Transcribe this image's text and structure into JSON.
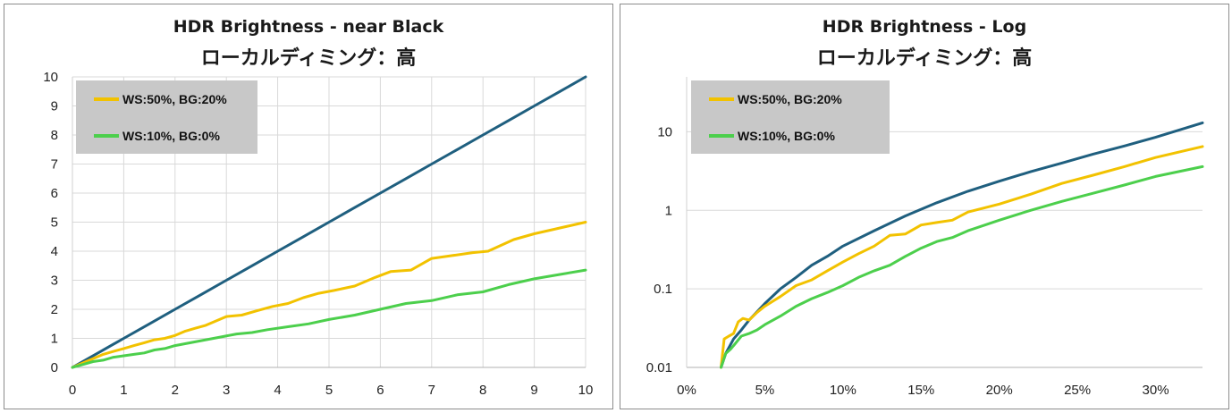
{
  "colors": {
    "reference": "#1f5f7f",
    "ws50": "#f2c200",
    "ws10": "#4ccf4c",
    "grid": "#d9d9d9",
    "legend_bg": "#c8c8c8"
  },
  "chart_data": [
    {
      "type": "line",
      "title": "HDR Brightness - near Black",
      "subtitle": "ローカルディミング：高",
      "xlim": [
        0,
        10
      ],
      "ylim": [
        0,
        10
      ],
      "x_ticks": [
        "0",
        "1",
        "2",
        "3",
        "4",
        "5",
        "6",
        "7",
        "8",
        "9",
        "10"
      ],
      "y_ticks": [
        "0",
        "1",
        "2",
        "3",
        "4",
        "5",
        "6",
        "7",
        "8",
        "9",
        "10"
      ],
      "grid": true,
      "legend_position": "top-left",
      "series": [
        {
          "color_key": "reference",
          "x": [
            0,
            0.5,
            1,
            1.5,
            2,
            2.5,
            3,
            3.5,
            4,
            4.5,
            5,
            5.5,
            6,
            6.5,
            7,
            7.5,
            8,
            8.5,
            9,
            9.5,
            10
          ],
          "y": [
            0,
            0.5,
            1,
            1.5,
            2,
            2.5,
            3,
            3.5,
            4,
            4.5,
            5,
            5.5,
            6,
            6.5,
            7,
            7.5,
            8,
            8.5,
            9,
            9.5,
            10
          ]
        },
        {
          "name": "WS:50%, BG:20%",
          "color_key": "ws50",
          "x": [
            0,
            0.2,
            0.4,
            0.6,
            0.8,
            1,
            1.2,
            1.4,
            1.6,
            1.8,
            2,
            2.2,
            2.4,
            2.6,
            2.8,
            3,
            3.3,
            3.6,
            3.9,
            4.2,
            4.5,
            4.8,
            5.1,
            5.5,
            5.9,
            6.2,
            6.6,
            7.0,
            7.4,
            7.8,
            8.1,
            8.6,
            9.0,
            9.5,
            10
          ],
          "y": [
            0,
            0.15,
            0.3,
            0.45,
            0.55,
            0.65,
            0.75,
            0.85,
            0.95,
            1.0,
            1.1,
            1.25,
            1.35,
            1.45,
            1.6,
            1.75,
            1.8,
            1.95,
            2.1,
            2.2,
            2.4,
            2.55,
            2.65,
            2.8,
            3.1,
            3.3,
            3.35,
            3.75,
            3.85,
            3.95,
            4.0,
            4.4,
            4.6,
            4.8,
            5.0
          ]
        },
        {
          "name": "WS:10%, BG:0%",
          "color_key": "ws10",
          "x": [
            0,
            0.2,
            0.4,
            0.6,
            0.8,
            1,
            1.2,
            1.4,
            1.6,
            1.8,
            2,
            2.3,
            2.6,
            2.9,
            3.2,
            3.5,
            3.8,
            4.2,
            4.6,
            5.0,
            5.5,
            6.0,
            6.5,
            7.0,
            7.5,
            8.0,
            8.5,
            9.0,
            9.5,
            10
          ],
          "y": [
            0,
            0.1,
            0.2,
            0.25,
            0.35,
            0.4,
            0.45,
            0.5,
            0.6,
            0.65,
            0.75,
            0.85,
            0.95,
            1.05,
            1.15,
            1.2,
            1.3,
            1.4,
            1.5,
            1.65,
            1.8,
            2.0,
            2.2,
            2.3,
            2.5,
            2.6,
            2.85,
            3.05,
            3.2,
            3.35
          ]
        }
      ]
    },
    {
      "type": "line",
      "title": "HDR Brightness - Log",
      "subtitle": "ローカルディミング：高",
      "xlim": [
        0,
        0.33
      ],
      "ylim": [
        0.01,
        50
      ],
      "y_scale": "log",
      "x_ticks": [
        "0%",
        "5%",
        "10%",
        "15%",
        "20%",
        "25%",
        "30%"
      ],
      "y_ticks": [
        "0.01",
        "0.1",
        "1",
        "10"
      ],
      "grid": true,
      "legend_position": "top-left",
      "series": [
        {
          "color_key": "reference",
          "x": [
            0.022,
            0.025,
            0.03,
            0.035,
            0.04,
            0.05,
            0.06,
            0.07,
            0.08,
            0.09,
            0.1,
            0.12,
            0.14,
            0.16,
            0.18,
            0.2,
            0.22,
            0.24,
            0.26,
            0.28,
            0.3,
            0.33
          ],
          "y": [
            0.01,
            0.015,
            0.023,
            0.03,
            0.04,
            0.065,
            0.1,
            0.14,
            0.2,
            0.26,
            0.35,
            0.55,
            0.85,
            1.25,
            1.75,
            2.35,
            3.1,
            4.0,
            5.2,
            6.6,
            8.5,
            13
          ]
        },
        {
          "name": "WS:50%, BG:20%",
          "color_key": "ws50",
          "x": [
            0.022,
            0.024,
            0.027,
            0.03,
            0.033,
            0.036,
            0.04,
            0.045,
            0.05,
            0.06,
            0.07,
            0.08,
            0.09,
            0.1,
            0.11,
            0.12,
            0.13,
            0.14,
            0.15,
            0.16,
            0.17,
            0.18,
            0.2,
            0.22,
            0.24,
            0.26,
            0.28,
            0.3,
            0.33
          ],
          "y": [
            0.01,
            0.023,
            0.025,
            0.027,
            0.038,
            0.042,
            0.04,
            0.05,
            0.06,
            0.08,
            0.11,
            0.13,
            0.17,
            0.22,
            0.28,
            0.35,
            0.48,
            0.5,
            0.65,
            0.7,
            0.75,
            0.95,
            1.2,
            1.6,
            2.2,
            2.8,
            3.6,
            4.7,
            6.5
          ]
        },
        {
          "name": "WS:10%, BG:0%",
          "color_key": "ws10",
          "x": [
            0.022,
            0.025,
            0.028,
            0.031,
            0.035,
            0.04,
            0.045,
            0.05,
            0.06,
            0.07,
            0.08,
            0.09,
            0.1,
            0.11,
            0.12,
            0.13,
            0.14,
            0.15,
            0.16,
            0.17,
            0.18,
            0.2,
            0.22,
            0.24,
            0.26,
            0.28,
            0.3,
            0.33
          ],
          "y": [
            0.01,
            0.015,
            0.017,
            0.02,
            0.025,
            0.027,
            0.03,
            0.035,
            0.045,
            0.06,
            0.075,
            0.09,
            0.11,
            0.14,
            0.17,
            0.2,
            0.26,
            0.33,
            0.4,
            0.45,
            0.55,
            0.75,
            1.0,
            1.3,
            1.65,
            2.1,
            2.7,
            3.6
          ]
        }
      ]
    }
  ]
}
